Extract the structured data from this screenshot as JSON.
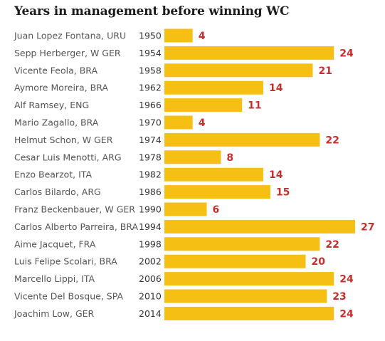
{
  "chart_data": {
    "type": "bar",
    "orientation": "horizontal",
    "title": "Years in management before winning WC",
    "categories": [
      "Juan Lopez Fontana, URU",
      "Sepp Herberger, W GER",
      "Vicente Feola, BRA",
      "Aymore Moreira, BRA",
      "Alf Ramsey, ENG",
      "Mario Zagallo, BRA",
      "Helmut Schon, W GER",
      "Cesar Luis Menotti, ARG",
      "Enzo Bearzot, ITA",
      "Carlos Bilardo, ARG",
      "Franz Beckenbauer, W GER",
      "Carlos Alberto Parreira, BRA",
      "Aime Jacquet, FRA",
      "Luis Felipe Scolari, BRA",
      "Marcello Lippi, ITA",
      "Vicente Del Bosque, SPA",
      "Joachim Low, GER"
    ],
    "years": [
      "1950",
      "1954",
      "1958",
      "1962",
      "1966",
      "1970",
      "1974",
      "1978",
      "1982",
      "1986",
      "1990",
      "1994",
      "1998",
      "2002",
      "2006",
      "2010",
      "2014"
    ],
    "values": [
      4,
      24,
      21,
      14,
      11,
      4,
      22,
      8,
      14,
      15,
      6,
      27,
      22,
      20,
      24,
      23,
      24
    ],
    "xlim": [
      0,
      27
    ],
    "grid": false,
    "legend": "none",
    "colors": {
      "bar": "#f5bf14",
      "value_label": "#c3302d",
      "name_label": "#555555",
      "year_label": "#333333",
      "title": "#1b1b1b"
    }
  }
}
